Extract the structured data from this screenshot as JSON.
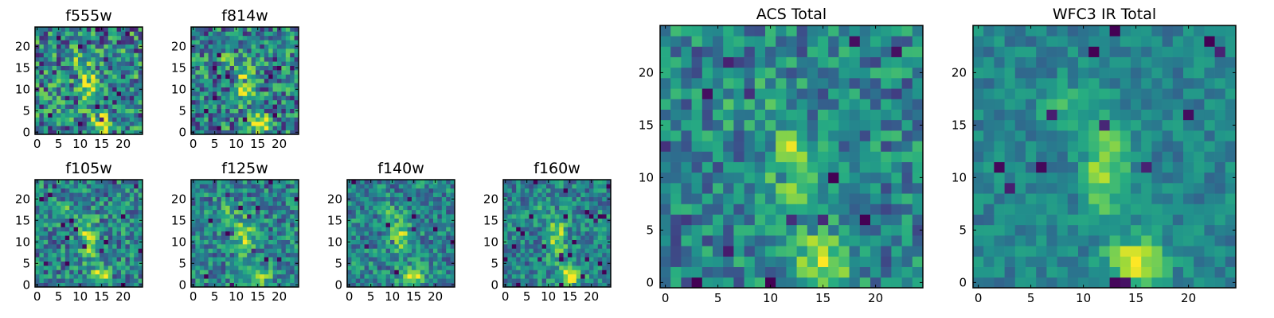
{
  "chart_data": {
    "type": "heatmap",
    "colormap": "viridis",
    "grid_size": 25,
    "panels": [
      {
        "id": "f555w",
        "title": "f555w",
        "xticks": [
          "0",
          "5",
          "10",
          "15",
          "20"
        ],
        "yticks": [
          "0",
          "5",
          "10",
          "15",
          "20"
        ],
        "noise": 0.6,
        "seed": 11
      },
      {
        "id": "f814w",
        "title": "f814w",
        "xticks": [
          "0",
          "5",
          "10",
          "15",
          "20"
        ],
        "yticks": [
          "0",
          "5",
          "10",
          "15",
          "20"
        ],
        "noise": 0.55,
        "seed": 23
      },
      {
        "id": "f105w",
        "title": "f105w",
        "xticks": [
          "0",
          "5",
          "10",
          "15",
          "20"
        ],
        "yticks": [
          "0",
          "5",
          "10",
          "15",
          "20"
        ],
        "noise": 0.45,
        "seed": 37
      },
      {
        "id": "f125w",
        "title": "f125w",
        "xticks": [
          "0",
          "5",
          "10",
          "15",
          "20"
        ],
        "yticks": [
          "0",
          "5",
          "10",
          "15",
          "20"
        ],
        "noise": 0.42,
        "seed": 41
      },
      {
        "id": "f140w",
        "title": "f140w",
        "xticks": [
          "0",
          "5",
          "10",
          "15",
          "20"
        ],
        "yticks": [
          "0",
          "5",
          "10",
          "15",
          "20"
        ],
        "noise": 0.4,
        "seed": 53
      },
      {
        "id": "f160w",
        "title": "f160w",
        "xticks": [
          "0",
          "5",
          "10",
          "15",
          "20"
        ],
        "yticks": [
          "0",
          "5",
          "10",
          "15",
          "20"
        ],
        "noise": 0.38,
        "seed": 67
      },
      {
        "id": "acs_total",
        "title": "ACS Total",
        "xticks": [
          "0",
          "5",
          "10",
          "15",
          "20"
        ],
        "yticks": [
          "0",
          "5",
          "10",
          "15",
          "20"
        ],
        "noise": 0.4,
        "seed": 79
      },
      {
        "id": "wfc3_ir_total",
        "title": "WFC3 IR Total",
        "xticks": [
          "0",
          "5",
          "10",
          "15",
          "20"
        ],
        "yticks": [
          "0",
          "5",
          "10",
          "15",
          "20"
        ],
        "noise": 0.22,
        "seed": 97
      }
    ]
  }
}
